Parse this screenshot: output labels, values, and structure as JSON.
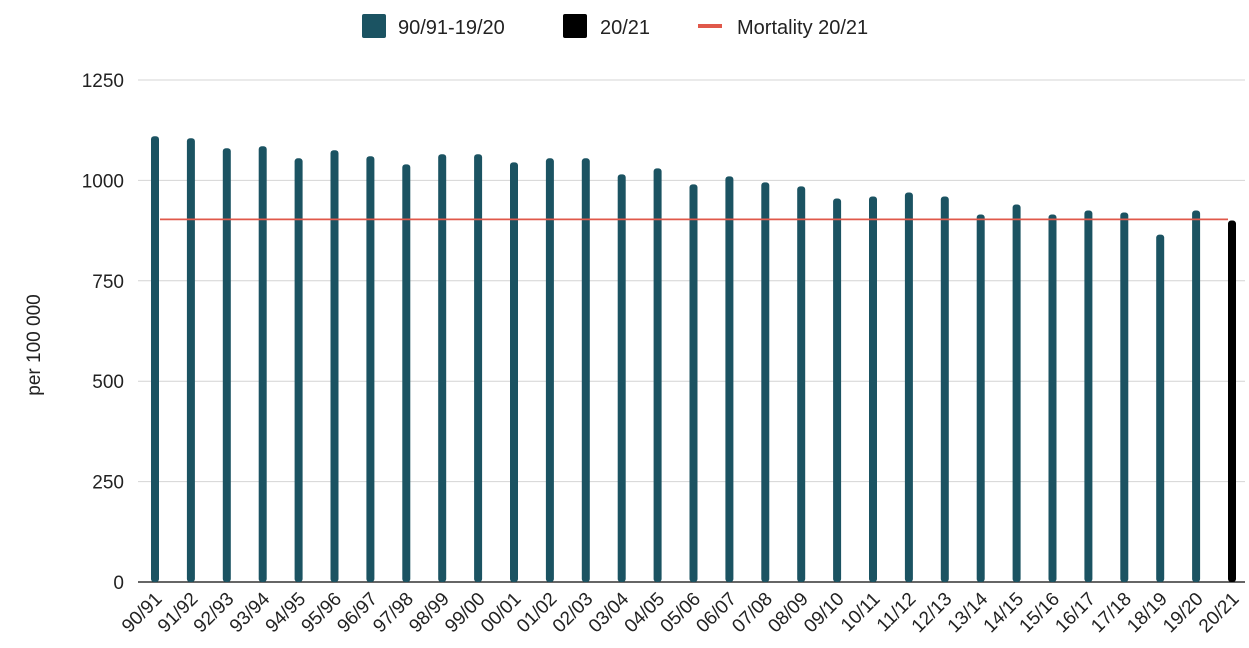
{
  "chart_data": {
    "type": "bar",
    "ylabel": "per 100 000",
    "xlabel": "",
    "ylim": [
      0,
      1250
    ],
    "yticks": [
      0,
      250,
      500,
      750,
      1000,
      1250
    ],
    "grid": "horizontal",
    "legend_position": "top-center",
    "categories": [
      "90/91",
      "91/92",
      "92/93",
      "93/94",
      "94/95",
      "95/96",
      "96/97",
      "97/98",
      "98/99",
      "99/00",
      "00/01",
      "01/02",
      "02/03",
      "03/04",
      "04/05",
      "05/06",
      "06/07",
      "07/08",
      "08/09",
      "09/10",
      "10/11",
      "11/12",
      "12/13",
      "13/14",
      "14/15",
      "15/16",
      "16/17",
      "17/18",
      "18/19",
      "19/20",
      "20/21"
    ],
    "series": [
      {
        "name": "90/91-19/20",
        "color": "#1b5362",
        "values": [
          1110,
          1105,
          1080,
          1085,
          1055,
          1075,
          1060,
          1040,
          1065,
          1065,
          1045,
          1055,
          1055,
          1015,
          1030,
          990,
          1010,
          995,
          985,
          955,
          960,
          970,
          960,
          915,
          940,
          915,
          925,
          920,
          865,
          925,
          null
        ]
      },
      {
        "name": "20/21",
        "color": "#000000",
        "values": [
          null,
          null,
          null,
          null,
          null,
          null,
          null,
          null,
          null,
          null,
          null,
          null,
          null,
          null,
          null,
          null,
          null,
          null,
          null,
          null,
          null,
          null,
          null,
          null,
          null,
          null,
          null,
          null,
          null,
          null,
          900
        ]
      }
    ],
    "reference_line": {
      "name": "Mortality 20/21",
      "value": 903,
      "color": "#e0584a"
    }
  }
}
